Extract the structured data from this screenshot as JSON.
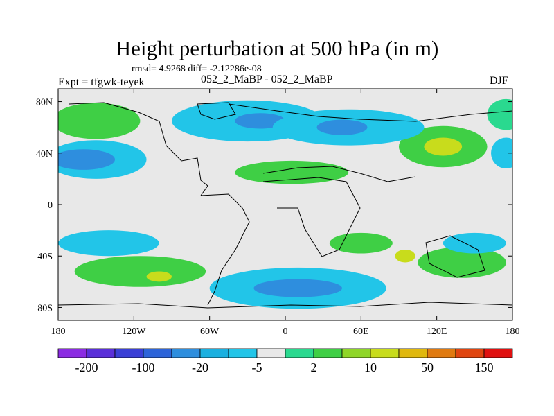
{
  "header": {
    "title": "Height perturbation at 500 hPa (in m)",
    "stats": "rmsd= 4.9268 diff= -2.12286e-08",
    "expt": "Expt = tfgwk-teyek",
    "subtitle": "052_2_MaBP - 052_2_MaBP",
    "season": "DJF"
  },
  "chart_data": {
    "type": "heatmap",
    "title": "Height perturbation at 500 hPa (in m)",
    "x_ticks": [
      {
        "value": -180,
        "label": "180"
      },
      {
        "value": -120,
        "label": "120W"
      },
      {
        "value": -60,
        "label": "60W"
      },
      {
        "value": 0,
        "label": "0"
      },
      {
        "value": 60,
        "label": "60E"
      },
      {
        "value": 120,
        "label": "120E"
      },
      {
        "value": 180,
        "label": "180"
      }
    ],
    "y_ticks": [
      {
        "value": 80,
        "label": "80N"
      },
      {
        "value": 40,
        "label": "40N"
      },
      {
        "value": 0,
        "label": "0"
      },
      {
        "value": -40,
        "label": "40S"
      },
      {
        "value": -80,
        "label": "80S"
      }
    ],
    "xlim": [
      -180,
      180
    ],
    "ylim": [
      -90,
      90
    ],
    "colorbar": {
      "colors": [
        "#8b2be2",
        "#5a2fd9",
        "#3a3fd6",
        "#2d64d9",
        "#2e8ede",
        "#1ab0e0",
        "#22c5e8",
        "#e8e8e8",
        "#2ad98f",
        "#3fcf45",
        "#8fd628",
        "#c8dc1c",
        "#e0b80e",
        "#e07a10",
        "#e04510",
        "#e01010"
      ],
      "labels": [
        "-200",
        "-100",
        "-20",
        "-5",
        "2",
        "10",
        "50",
        "150"
      ]
    },
    "regions": [
      {
        "level": 10,
        "cx": -150,
        "cy": 65,
        "rx": 35,
        "ry": 14
      },
      {
        "level": 10,
        "cx": -115,
        "cy": -52,
        "rx": 52,
        "ry": 12
      },
      {
        "level": 50,
        "cx": -100,
        "cy": -56,
        "rx": 10,
        "ry": 4
      },
      {
        "level": 10,
        "cx": 5,
        "cy": 25,
        "rx": 45,
        "ry": 9
      },
      {
        "level": 10,
        "cx": 60,
        "cy": -30,
        "rx": 25,
        "ry": 8
      },
      {
        "level": 10,
        "cx": 125,
        "cy": 45,
        "rx": 35,
        "ry": 16
      },
      {
        "level": 50,
        "cx": 125,
        "cy": 45,
        "rx": 15,
        "ry": 7
      },
      {
        "level": 10,
        "cx": 140,
        "cy": -45,
        "rx": 35,
        "ry": 12
      },
      {
        "level": 50,
        "cx": 95,
        "cy": -40,
        "rx": 8,
        "ry": 5
      },
      {
        "level": 2,
        "cx": 175,
        "cy": 70,
        "rx": 15,
        "ry": 12
      },
      {
        "level": -5,
        "cx": -150,
        "cy": 35,
        "rx": 40,
        "ry": 15
      },
      {
        "level": -20,
        "cx": -160,
        "cy": 35,
        "rx": 25,
        "ry": 8
      },
      {
        "level": -5,
        "cx": -30,
        "cy": 65,
        "rx": 60,
        "ry": 16
      },
      {
        "level": -20,
        "cx": -20,
        "cy": 65,
        "rx": 20,
        "ry": 6
      },
      {
        "level": -5,
        "cx": 50,
        "cy": 60,
        "rx": 60,
        "ry": 14
      },
      {
        "level": -20,
        "cx": 45,
        "cy": 60,
        "rx": 20,
        "ry": 6
      },
      {
        "level": -5,
        "cx": -140,
        "cy": -30,
        "rx": 40,
        "ry": 10
      },
      {
        "level": -5,
        "cx": 10,
        "cy": -65,
        "rx": 70,
        "ry": 16
      },
      {
        "level": -20,
        "cx": 10,
        "cy": -65,
        "rx": 35,
        "ry": 7
      },
      {
        "level": -5,
        "cx": 150,
        "cy": -30,
        "rx": 25,
        "ry": 8
      },
      {
        "level": -5,
        "cx": 175,
        "cy": 40,
        "rx": 12,
        "ry": 12
      }
    ]
  }
}
